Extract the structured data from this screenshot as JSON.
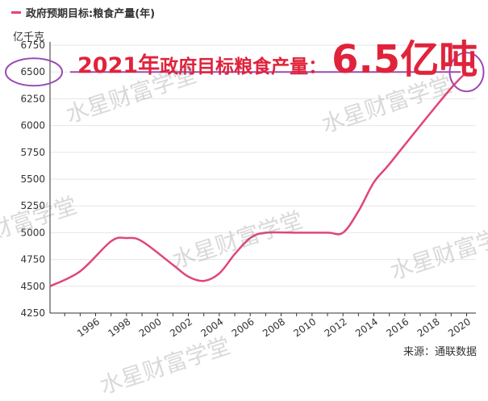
{
  "legend": {
    "label": "政府预期目标:粮食产量(年)",
    "color": "#e0457b"
  },
  "y_unit": "亿千克",
  "headline": {
    "year_label": "2021年",
    "text": "政府目标粮食产量：",
    "value": "6.5亿吨",
    "color": "#e0233b"
  },
  "source": "来源：通联数据",
  "watermark": "水星财富学堂",
  "colors": {
    "line": "#e0457b",
    "highlight": "#9b4bb0",
    "grid": "#e6e6e6",
    "axis": "#333333"
  },
  "chart_data": {
    "type": "line",
    "x_ticks": [
      "1996",
      "1998",
      "2000",
      "2002",
      "2004",
      "2006",
      "2008",
      "2010",
      "2012",
      "2014",
      "2016",
      "2018",
      "2020"
    ],
    "y_ticks": [
      "4250",
      "4500",
      "4750",
      "5000",
      "5250",
      "5500",
      "5750",
      "6000",
      "6250",
      "6500",
      "6750"
    ],
    "xlim": [
      1994.05,
      2021.6
    ],
    "ylim": [
      4250,
      6750
    ],
    "series": [
      {
        "name": "政府预期目标:粮食产量(年)",
        "points": [
          [
            1994.05,
            4500
          ],
          [
            1996.0,
            4640
          ],
          [
            1998.0,
            4920
          ],
          [
            1999.0,
            4950
          ],
          [
            2000.0,
            4920
          ],
          [
            2002.0,
            4700
          ],
          [
            2003.0,
            4590
          ],
          [
            2004.0,
            4550
          ],
          [
            2005.0,
            4620
          ],
          [
            2006.0,
            4800
          ],
          [
            2007.0,
            4950
          ],
          [
            2008.0,
            5000
          ],
          [
            2010.0,
            5000
          ],
          [
            2012.0,
            5000
          ],
          [
            2013.0,
            5000
          ],
          [
            2014.0,
            5200
          ],
          [
            2015.0,
            5470
          ],
          [
            2016.0,
            5640
          ],
          [
            2018.0,
            6000
          ],
          [
            2020.0,
            6350
          ],
          [
            2021.0,
            6500
          ]
        ]
      }
    ],
    "highlight_value": 6500,
    "grid": true
  }
}
